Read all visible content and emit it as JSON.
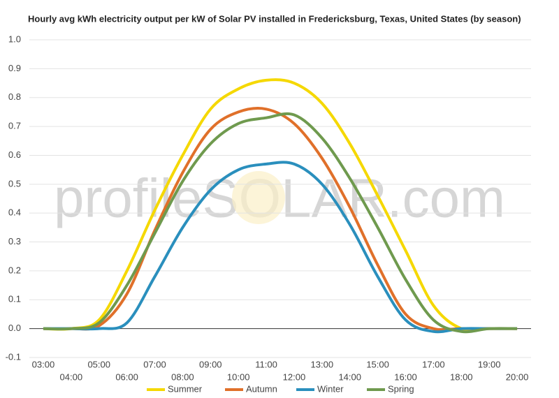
{
  "chart_data": {
    "type": "line",
    "title": "Hourly avg kWh electricity output per kW of Solar PV installed in Fredericksburg, Texas, United States (by season)",
    "watermark": "profileSOLAR.com",
    "categories": [
      "03:00",
      "04:00",
      "05:00",
      "06:00",
      "07:00",
      "08:00",
      "09:00",
      "10:00",
      "11:00",
      "12:00",
      "13:00",
      "14:00",
      "15:00",
      "16:00",
      "17:00",
      "18:00",
      "19:00",
      "20:00"
    ],
    "series": [
      {
        "name": "Summer",
        "color": "#f5d800",
        "values": [
          0,
          0,
          0.03,
          0.2,
          0.41,
          0.6,
          0.76,
          0.83,
          0.86,
          0.85,
          0.78,
          0.64,
          0.46,
          0.27,
          0.08,
          0,
          0,
          0
        ]
      },
      {
        "name": "Autumn",
        "color": "#e0702a",
        "values": [
          0,
          0,
          0.01,
          0.12,
          0.34,
          0.54,
          0.69,
          0.75,
          0.76,
          0.71,
          0.59,
          0.42,
          0.22,
          0.05,
          0,
          0,
          0,
          0
        ]
      },
      {
        "name": "Winter",
        "color": "#2a8fbd",
        "values": [
          0,
          0,
          0,
          0.02,
          0.18,
          0.35,
          0.48,
          0.55,
          0.57,
          0.57,
          0.5,
          0.36,
          0.18,
          0.03,
          -0.01,
          0,
          0,
          0
        ]
      },
      {
        "name": "Spring",
        "color": "#6f9a4e",
        "values": [
          0,
          0,
          0.02,
          0.15,
          0.33,
          0.51,
          0.64,
          0.71,
          0.73,
          0.74,
          0.66,
          0.52,
          0.35,
          0.17,
          0.03,
          -0.01,
          0,
          0
        ]
      }
    ],
    "ylim": [
      -0.1,
      1.0
    ],
    "yticks": [
      -0.1,
      {
        "value": 0,
        "label": "0.0"
      },
      0.1,
      0.2,
      0.3,
      0.4,
      0.5,
      0.6,
      0.7,
      0.8,
      0.9,
      {
        "value": 1,
        "label": "1.0"
      }
    ],
    "grid": true,
    "legend": "bottom"
  }
}
